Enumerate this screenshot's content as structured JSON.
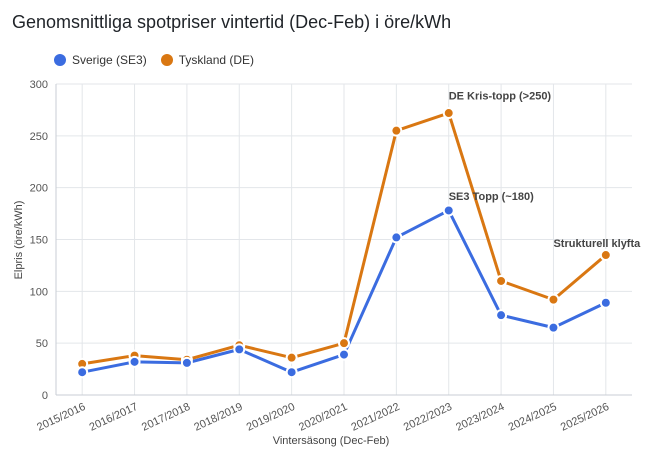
{
  "chart_data": {
    "type": "line",
    "title": "Genomsnittliga spotpriser vintertid (Dec-Feb) i öre/kWh",
    "xlabel": "Vintersäsong (Dec-Feb)",
    "ylabel": "Elpris (öre/kWh)",
    "ylim": [
      0,
      300
    ],
    "yticks": [
      "0",
      "50",
      "100",
      "150",
      "200",
      "250",
      "300"
    ],
    "grid": true,
    "legend_position": "top-left",
    "categories": [
      "2015/2016",
      "2016/2017",
      "2017/2018",
      "2018/2019",
      "2019/2020",
      "2020/2021",
      "2021/2022",
      "2022/2023",
      "2023/2024",
      "2024/2025",
      "2025/2026"
    ],
    "series": [
      {
        "name": "Sverige (SE3)",
        "color": "#3b6ce0",
        "values": [
          22,
          32,
          31,
          44,
          22,
          39,
          152,
          178,
          77,
          65,
          89
        ]
      },
      {
        "name": "Tyskland (DE)",
        "color": "#d97712",
        "values": [
          30,
          38,
          34,
          48,
          36,
          50,
          255,
          272,
          110,
          92,
          135
        ]
      }
    ],
    "annotations": [
      {
        "text": "DE Kris-topp (>250)",
        "x": "2022/2023",
        "y": 285
      },
      {
        "text": "SE3 Topp (~180)",
        "x": "2022/2023",
        "y": 188
      },
      {
        "text": "Strukturell klyfta",
        "x": "2024/2025",
        "y": 143
      }
    ]
  }
}
